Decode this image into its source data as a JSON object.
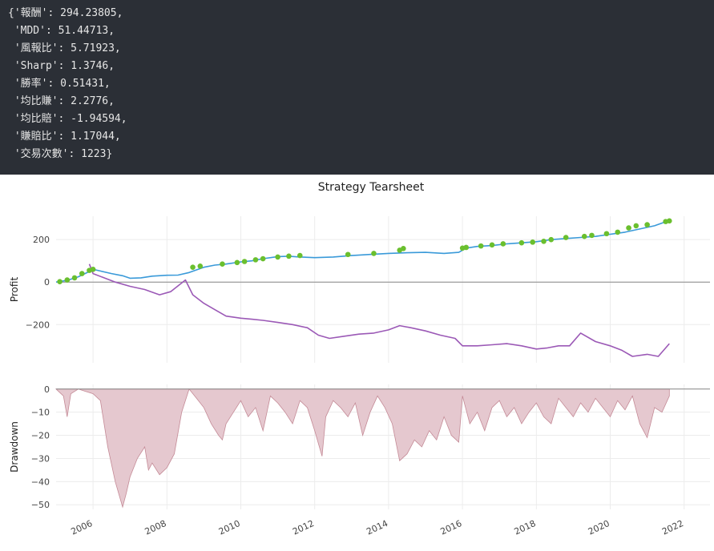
{
  "console": {
    "lines": [
      "{'報酬': 294.23805,",
      " 'MDD': 51.44713,",
      " '風報比': 5.71923,",
      " 'Sharp': 1.3746,",
      " '勝率': 0.51431,",
      " '均比賺': 2.2776,",
      " '均比賠': -1.94594,",
      " '賺賠比': 1.17044,",
      " '交易次數': 1223}"
    ]
  },
  "chart_data": [
    {
      "type": "line",
      "title": "Strategy Tearsheet",
      "ylabel": "Profit",
      "ylim": [
        -380,
        310
      ],
      "yticks": [
        200,
        0,
        -200
      ],
      "ytick_labels": [
        "200",
        "0",
        "−200"
      ],
      "xlim": [
        2005.0,
        2022.7
      ],
      "grid": true,
      "colors": {
        "profit": "#3a9ad9",
        "benchmark": "#9b59b6",
        "trades": "#6abf2e",
        "zero": "#888888"
      },
      "series": [
        {
          "role": "profit",
          "x": [
            2005.0,
            2005.3,
            2005.6,
            2005.9,
            2006.0,
            2006.2,
            2006.5,
            2006.8,
            2007.0,
            2007.3,
            2007.6,
            2008.0,
            2008.3,
            2008.6,
            2009.0,
            2009.3,
            2009.6,
            2010.0,
            2010.3,
            2010.6,
            2011.0,
            2011.3,
            2011.6,
            2012.0,
            2012.5,
            2013.0,
            2013.5,
            2014.0,
            2014.5,
            2015.0,
            2015.5,
            2015.9,
            2016.1,
            2016.4,
            2016.8,
            2017.2,
            2017.6,
            2018.0,
            2018.4,
            2018.8,
            2019.2,
            2019.6,
            2020.0,
            2020.4,
            2020.8,
            2021.2,
            2021.6
          ],
          "y": [
            0,
            8,
            25,
            50,
            60,
            52,
            40,
            30,
            18,
            20,
            28,
            32,
            33,
            45,
            70,
            80,
            85,
            95,
            100,
            110,
            120,
            122,
            118,
            115,
            118,
            125,
            130,
            135,
            138,
            140,
            135,
            140,
            160,
            168,
            172,
            180,
            185,
            190,
            200,
            205,
            210,
            215,
            225,
            235,
            250,
            265,
            290
          ]
        },
        {
          "role": "benchmark",
          "x": [
            2005.9,
            2006.0,
            2006.3,
            2006.6,
            2007.0,
            2007.4,
            2007.8,
            2008.1,
            2008.5,
            2008.7,
            2009.0,
            2009.3,
            2009.6,
            2010.0,
            2010.3,
            2010.6,
            2011.0,
            2011.4,
            2011.8,
            2012.1,
            2012.4,
            2012.8,
            2013.2,
            2013.6,
            2014.0,
            2014.3,
            2014.6,
            2015.0,
            2015.4,
            2015.8,
            2016.0,
            2016.4,
            2016.8,
            2017.2,
            2017.6,
            2018.0,
            2018.3,
            2018.6,
            2018.9,
            2019.2,
            2019.6,
            2020.0,
            2020.3,
            2020.6,
            2021.0,
            2021.3,
            2021.6
          ],
          "y": [
            85,
            40,
            20,
            0,
            -20,
            -35,
            -60,
            -45,
            10,
            -60,
            -100,
            -130,
            -160,
            -170,
            -175,
            -180,
            -190,
            -200,
            -215,
            -250,
            -265,
            -255,
            -245,
            -240,
            -225,
            -205,
            -215,
            -230,
            -250,
            -265,
            -300,
            -300,
            -295,
            -290,
            -300,
            -315,
            -310,
            -300,
            -300,
            -240,
            -280,
            -300,
            -320,
            -350,
            -340,
            -350,
            -290
          ]
        },
        {
          "role": "trades",
          "x": [
            2005.1,
            2005.3,
            2005.5,
            2005.7,
            2005.9,
            2006.0,
            2008.7,
            2008.9,
            2009.5,
            2009.9,
            2010.1,
            2010.4,
            2010.6,
            2011.0,
            2011.3,
            2011.6,
            2012.9,
            2013.6,
            2014.3,
            2014.4,
            2016.0,
            2016.1,
            2016.5,
            2016.8,
            2017.1,
            2017.6,
            2017.9,
            2018.2,
            2018.4,
            2018.8,
            2019.3,
            2019.5,
            2019.9,
            2020.2,
            2020.5,
            2020.7,
            2021.0,
            2021.5,
            2021.6
          ],
          "y": [
            2,
            10,
            20,
            40,
            55,
            60,
            70,
            75,
            85,
            92,
            97,
            105,
            110,
            118,
            122,
            125,
            130,
            135,
            150,
            158,
            160,
            163,
            170,
            175,
            180,
            185,
            188,
            192,
            200,
            210,
            215,
            220,
            228,
            235,
            255,
            265,
            270,
            285,
            288
          ]
        }
      ]
    },
    {
      "type": "area",
      "ylabel": "Drawdown",
      "ylim": [
        -52,
        2
      ],
      "yticks": [
        0,
        -10,
        -20,
        -30,
        -40,
        -50
      ],
      "ytick_labels": [
        "0",
        "−10",
        "−20",
        "−30",
        "−40",
        "−50"
      ],
      "xlim": [
        2005.0,
        2022.7
      ],
      "xticks": [
        2006,
        2008,
        2010,
        2012,
        2014,
        2016,
        2018,
        2020,
        2022
      ],
      "xtick_labels": [
        "2006",
        "2008",
        "2010",
        "2012",
        "2014",
        "2016",
        "2018",
        "2020",
        "2022"
      ],
      "grid": true,
      "colors": {
        "fill": "#e5c8cf",
        "line": "#c48a96",
        "zero": "#888888"
      },
      "series": [
        {
          "role": "drawdown",
          "x": [
            2005.0,
            2005.2,
            2005.3,
            2005.4,
            2005.6,
            2005.8,
            2006.0,
            2006.2,
            2006.4,
            2006.6,
            2006.8,
            2006.9,
            2007.0,
            2007.2,
            2007.4,
            2007.5,
            2007.6,
            2007.8,
            2008.0,
            2008.2,
            2008.4,
            2008.6,
            2008.8,
            2009.0,
            2009.2,
            2009.4,
            2009.5,
            2009.6,
            2009.8,
            2010.0,
            2010.2,
            2010.4,
            2010.6,
            2010.8,
            2011.0,
            2011.2,
            2011.4,
            2011.6,
            2011.8,
            2012.0,
            2012.2,
            2012.3,
            2012.5,
            2012.7,
            2012.9,
            2013.1,
            2013.3,
            2013.5,
            2013.7,
            2013.9,
            2014.1,
            2014.3,
            2014.5,
            2014.7,
            2014.9,
            2015.1,
            2015.3,
            2015.5,
            2015.7,
            2015.9,
            2016.0,
            2016.2,
            2016.4,
            2016.6,
            2016.8,
            2017.0,
            2017.2,
            2017.4,
            2017.6,
            2017.8,
            2018.0,
            2018.2,
            2018.4,
            2018.6,
            2018.8,
            2019.0,
            2019.2,
            2019.4,
            2019.6,
            2019.8,
            2020.0,
            2020.2,
            2020.4,
            2020.6,
            2020.8,
            2021.0,
            2021.2,
            2021.4,
            2021.6
          ],
          "y": [
            0,
            -3,
            -12,
            -2,
            0,
            -1,
            -2,
            -5,
            -25,
            -40,
            -51,
            -45,
            -38,
            -30,
            -25,
            -35,
            -32,
            -37,
            -34,
            -28,
            -10,
            0,
            -4,
            -8,
            -15,
            -20,
            -22,
            -15,
            -10,
            -5,
            -12,
            -8,
            -18,
            -3,
            -6,
            -10,
            -15,
            -5,
            -8,
            -18,
            -29,
            -12,
            -5,
            -8,
            -12,
            -6,
            -20,
            -10,
            -3,
            -8,
            -15,
            -31,
            -28,
            -22,
            -25,
            -18,
            -22,
            -12,
            -20,
            -23,
            -3,
            -15,
            -10,
            -18,
            -8,
            -5,
            -12,
            -8,
            -15,
            -10,
            -6,
            -12,
            -15,
            -4,
            -8,
            -12,
            -6,
            -10,
            -4,
            -8,
            -12,
            -5,
            -9,
            -3,
            -15,
            -21,
            -8,
            -10,
            -3
          ]
        }
      ]
    }
  ]
}
